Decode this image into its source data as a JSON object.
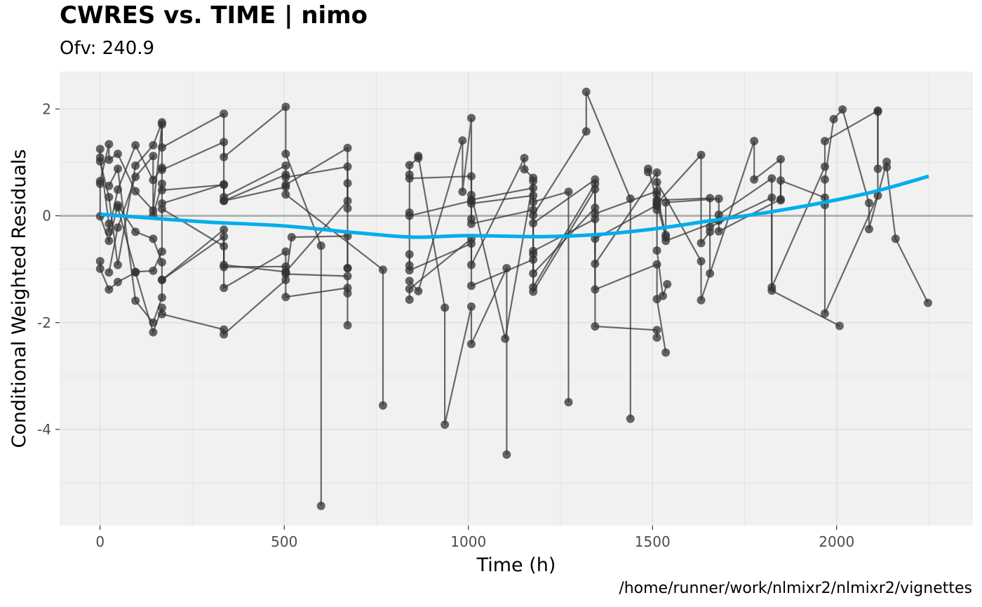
{
  "chart_data": {
    "type": "line",
    "title": "CWRES vs. TIME | nimo",
    "subtitle": "Ofv: 240.9",
    "caption": "/home/runner/work/nlmixr2/nlmixr2/vignettes",
    "xlabel": "Time (h)",
    "ylabel": "Conditional Weighted Residuals",
    "xlim": [
      -110,
      2370
    ],
    "ylim": [
      -5.8,
      2.7
    ],
    "xticks": [
      0,
      500,
      1000,
      1500,
      2000
    ],
    "yticks": [
      -4,
      -2,
      0,
      2
    ],
    "grid": true,
    "reference_line_y": 0,
    "colors": {
      "panel": "#f1f1f1",
      "grid": "#e0e0e0",
      "points": "#333333",
      "reference": "#b3b3b3",
      "smooth": "#00adee"
    },
    "smooth": {
      "x": [
        0,
        150,
        300,
        500,
        700,
        850,
        1000,
        1200,
        1350,
        1500,
        1650,
        1800,
        1950,
        2100,
        2250
      ],
      "y": [
        0.03,
        -0.05,
        -0.12,
        -0.19,
        -0.32,
        -0.4,
        -0.37,
        -0.39,
        -0.35,
        -0.25,
        -0.1,
        0.05,
        0.23,
        0.45,
        0.74
      ]
    },
    "series": [
      {
        "x": [
          0,
          0,
          24,
          48,
          96,
          144,
          168,
          168,
          336,
          336,
          504,
          504,
          672,
          672
        ],
        "y": [
          1.25,
          1.02,
          0.35,
          -0.92,
          0.94,
          1.32,
          1.75,
          0.86,
          1.38,
          0.28,
          0.77,
          0.58,
          1.27,
          -0.98
        ]
      },
      {
        "x": [
          0,
          0,
          24,
          48,
          96,
          144,
          168,
          168,
          336,
          336,
          504,
          520,
          672,
          672
        ],
        "y": [
          -0.85,
          -0.99,
          -1.38,
          -1.24,
          -1.06,
          -2.18,
          -1.72,
          -1.84,
          -2.13,
          -2.22,
          -1.2,
          -0.4,
          -0.38,
          -0.98
        ]
      },
      {
        "x": [
          0,
          24,
          24,
          48,
          96,
          144,
          168,
          168,
          336,
          336,
          504,
          504,
          600,
          600
        ],
        "y": [
          0.65,
          1.34,
          1.05,
          1.16,
          0.46,
          0.1,
          1.71,
          1.28,
          1.91,
          1.1,
          2.04,
          1.16,
          -0.56,
          -5.43
        ]
      },
      {
        "x": [
          0,
          0,
          24,
          48,
          96,
          144,
          168,
          168,
          336,
          336,
          504,
          504,
          672,
          672
        ],
        "y": [
          0.6,
          -0.01,
          -0.47,
          0.2,
          -0.3,
          -0.43,
          -0.87,
          -1.2,
          -0.26,
          -0.92,
          -1.05,
          -1.52,
          -1.35,
          -2.05
        ]
      },
      {
        "x": [
          0,
          24,
          24,
          48,
          96,
          144,
          168,
          168,
          336,
          336,
          504,
          504,
          672,
          672
        ],
        "y": [
          1.09,
          -0.15,
          -0.3,
          0.49,
          1.32,
          0.67,
          0.9,
          0.48,
          0.58,
          0.35,
          0.94,
          0.72,
          0.92,
          0.14
        ]
      },
      {
        "x": [
          24,
          48,
          96,
          144,
          144,
          168,
          168,
          336,
          336,
          504,
          504,
          768,
          768
        ],
        "y": [
          -1.06,
          -0.22,
          0.73,
          1.12,
          0.01,
          0.6,
          0.23,
          0.59,
          0.28,
          0.54,
          0.4,
          -1.01,
          -3.55
        ]
      },
      {
        "x": [
          24,
          48,
          96,
          144,
          168,
          168,
          336,
          336,
          504,
          504,
          672,
          672
        ],
        "y": [
          0.56,
          0.88,
          -1.59,
          -2.0,
          -1.53,
          -1.2,
          -0.39,
          -1.35,
          -0.67,
          -1.09,
          -1.13,
          -1.45
        ]
      },
      {
        "x": [
          48,
          96,
          144,
          168,
          168,
          336,
          336,
          504,
          504,
          672,
          672
        ],
        "y": [
          0.16,
          -1.05,
          -1.03,
          -0.67,
          0.13,
          -0.57,
          -0.96,
          -0.95,
          -1.05,
          0.28,
          0.61
        ]
      },
      {
        "x": [
          840,
          840,
          864,
          864,
          936,
          936,
          1008,
          1008,
          1104,
          1104
        ],
        "y": [
          0.77,
          0.95,
          1.08,
          1.12,
          -1.72,
          -3.91,
          -1.7,
          -2.4,
          -0.98,
          -4.47
        ]
      },
      {
        "x": [
          840,
          864,
          984,
          984,
          1008,
          1008,
          1100,
          1176,
          1176,
          1272,
          1272
        ],
        "y": [
          -1.22,
          -1.41,
          1.41,
          0.45,
          1.83,
          0.39,
          -2.3,
          0.65,
          0.26,
          0.45,
          -3.49
        ]
      },
      {
        "x": [
          840,
          840,
          1008,
          1008,
          1152,
          1152,
          1176,
          1176,
          1320,
          1320,
          1440,
          1440
        ],
        "y": [
          -0.72,
          -1.02,
          -0.52,
          -0.92,
          1.08,
          0.87,
          0.71,
          0.01,
          1.58,
          2.32,
          0.32,
          -3.8
        ]
      },
      {
        "x": [
          840,
          840,
          1008,
          1008,
          1176,
          1176,
          1344,
          1344,
          1512,
          1512
        ],
        "y": [
          -1.57,
          -1.37,
          -0.43,
          -1.31,
          -0.82,
          -1.42,
          0.5,
          -2.07,
          -2.14,
          -2.28
        ]
      },
      {
        "x": [
          840,
          840,
          1008,
          1008,
          1176,
          1176,
          1344,
          1344,
          1512,
          1512,
          1536
        ],
        "y": [
          0.06,
          0.7,
          0.74,
          0.23,
          0.38,
          -1.34,
          0.6,
          -1.38,
          -0.91,
          -1.56,
          -2.56
        ]
      },
      {
        "x": [
          840,
          840,
          1008,
          1008,
          1176,
          1176,
          1344,
          1344,
          1512,
          1512,
          1528,
          1540
        ],
        "y": [
          -0.93,
          0.0,
          0.28,
          -0.15,
          0.11,
          -1.08,
          0.15,
          -0.9,
          0.81,
          -0.65,
          -1.5,
          -1.28
        ]
      },
      {
        "x": [
          1008,
          1008,
          1176,
          1176,
          1344,
          1344,
          1512,
          1512,
          1632,
          1632,
          1656,
          1656
        ],
        "y": [
          -0.06,
          0.3,
          0.52,
          -0.14,
          0.68,
          0.04,
          0.46,
          0.23,
          1.14,
          -0.51,
          -0.3,
          -1.08
        ]
      },
      {
        "x": [
          1176,
          1176,
          1344,
          1344,
          1512,
          1512,
          1656,
          1656,
          1824,
          1824,
          2008
        ],
        "y": [
          -0.72,
          -0.66,
          -0.06,
          -0.43,
          0.2,
          0.29,
          0.33,
          -0.21,
          0.34,
          -1.4,
          -2.06
        ]
      },
      {
        "x": [
          1488,
          1488,
          1512,
          1512,
          1632,
          1632,
          1776,
          1776,
          1848,
          1848
        ],
        "y": [
          0.82,
          0.88,
          0.29,
          0.63,
          -0.85,
          -1.58,
          1.4,
          0.68,
          1.06,
          0.29
        ]
      },
      {
        "x": [
          1512,
          1512,
          1536,
          1536,
          1680,
          1680,
          1824,
          1824,
          1968,
          1968,
          2112,
          2112
        ],
        "y": [
          0.11,
          0.24,
          -0.4,
          -0.47,
          -0.09,
          0.02,
          0.7,
          -1.34,
          0.92,
          1.4,
          1.97,
          0.88
        ]
      },
      {
        "x": [
          1512,
          1512,
          1536,
          1536,
          1680,
          1680,
          1848,
          1848,
          1968,
          1968,
          2112,
          2112
        ],
        "y": [
          0.18,
          0.4,
          -0.36,
          0.25,
          0.32,
          -0.29,
          0.31,
          0.66,
          0.34,
          -1.83,
          0.38,
          1.95
        ]
      },
      {
        "x": [
          1968,
          1968,
          1992,
          2016,
          2088,
          2088,
          2136,
          2136,
          2160,
          2248
        ],
        "y": [
          0.2,
          0.68,
          1.81,
          1.99,
          0.24,
          -0.25,
          1.01,
          0.91,
          -0.43,
          -1.63
        ]
      }
    ]
  }
}
